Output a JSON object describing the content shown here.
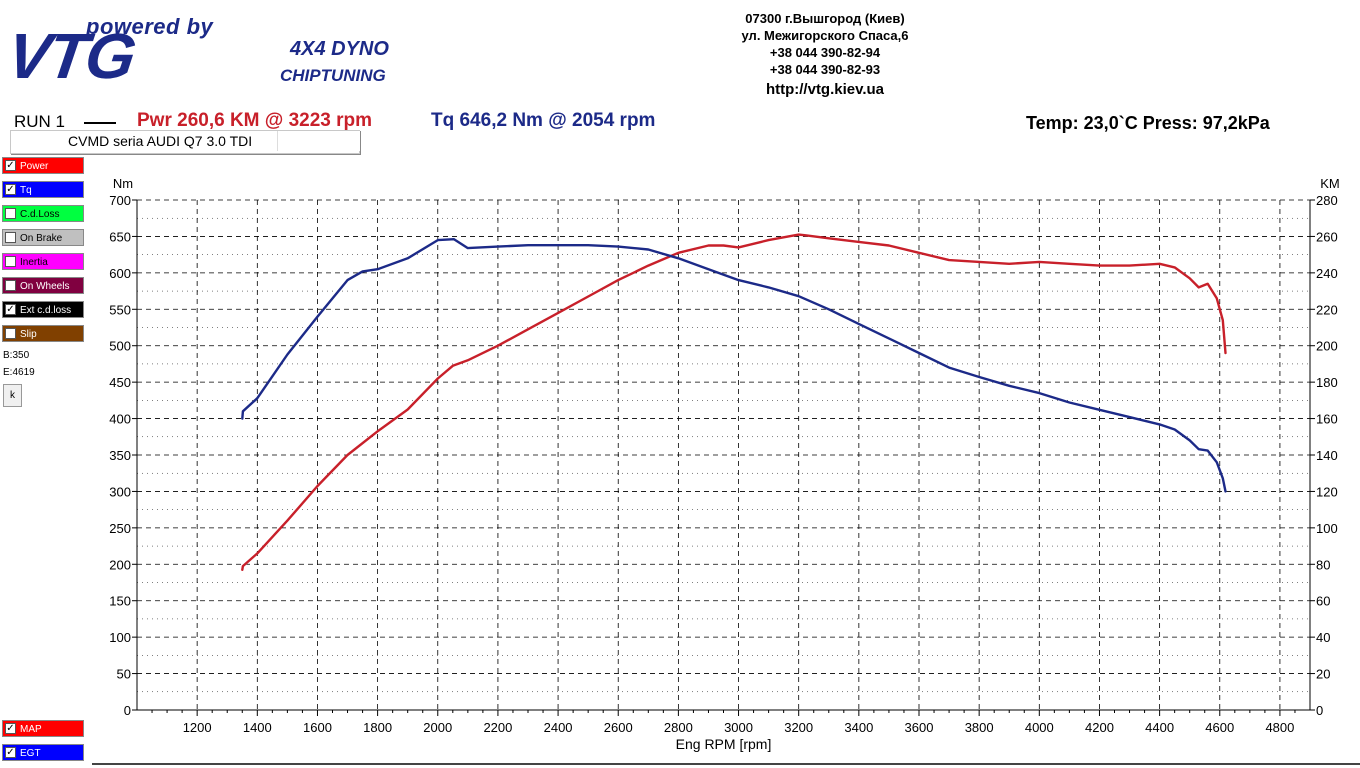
{
  "logo": {
    "powered": "powered by",
    "brand": "VTG",
    "line1": "4X4 DYNO",
    "line2": "CHIPTUNING"
  },
  "address": {
    "line1": "07300 г.Вышгород (Киев)",
    "line2": "ул. Межигорского Спаса,6",
    "phone1": "+38 044 390-82-94",
    "phone2": "+38 044 390-82-93",
    "url": "http://vtg.kiev.ua"
  },
  "header": {
    "run": "RUN 1",
    "power": "Pwr  260,6 KM @ 3223 rpm",
    "torque": "Tq 646,2 Nm @ 2054 rpm",
    "conditions": "Temp: 23,0`C   Press: 97,2kPa",
    "vehicle": "CVMD  seria AUDI Q7 3.0 TDI"
  },
  "legend": {
    "items": [
      {
        "label": "Power",
        "checked": true,
        "color": "#ff0000"
      },
      {
        "label": "Tq",
        "checked": true,
        "color": "#0000ff"
      },
      {
        "label": "C.d.Loss",
        "checked": false,
        "color": "#00ff40"
      },
      {
        "label": "On Brake",
        "checked": false,
        "color": "#c0c0c0"
      },
      {
        "label": "Inertia",
        "checked": false,
        "color": "#ff00ff"
      },
      {
        "label": "On Wheels",
        "checked": false,
        "color": "#800040"
      },
      {
        "label": "Ext c.d.loss",
        "checked": true,
        "color": "#000000"
      },
      {
        "label": "Slip",
        "checked": false,
        "color": "#804000"
      }
    ],
    "begin": "B:350",
    "end": "E:4619",
    "k_button": "k",
    "bottom_items": [
      {
        "label": "MAP",
        "checked": true,
        "color": "#ff0000"
      },
      {
        "label": "EGT",
        "checked": true,
        "color": "#0000ff"
      }
    ]
  },
  "chart_data": {
    "type": "line",
    "xlabel": "Eng RPM [rpm]",
    "ylabel_left": "Nm",
    "ylabel_right": "KM",
    "xlim": [
      1000,
      4900
    ],
    "ylim_left": [
      0,
      700
    ],
    "ylim_right": [
      0,
      280
    ],
    "x_ticks": [
      1200,
      1400,
      1600,
      1800,
      2000,
      2200,
      2400,
      2600,
      2800,
      3000,
      3200,
      3400,
      3600,
      3800,
      4000,
      4200,
      4400,
      4600,
      4800
    ],
    "y_ticks_left": [
      0,
      50,
      100,
      150,
      200,
      250,
      300,
      350,
      400,
      450,
      500,
      550,
      600,
      650,
      700
    ],
    "y_ticks_right": [
      0,
      20,
      40,
      60,
      80,
      100,
      120,
      140,
      160,
      180,
      200,
      220,
      240,
      260,
      280
    ],
    "grid": true,
    "series": [
      {
        "name": "Power",
        "axis": "right",
        "color": "#c8202a",
        "x": [
          1350,
          1352,
          1400,
          1500,
          1600,
          1700,
          1800,
          1900,
          2000,
          2050,
          2100,
          2200,
          2300,
          2400,
          2500,
          2600,
          2700,
          2800,
          2900,
          2950,
          3000,
          3100,
          3200,
          3223,
          3300,
          3400,
          3500,
          3600,
          3700,
          3800,
          3900,
          4000,
          4100,
          4200,
          4300,
          4400,
          4450,
          4500,
          4530,
          4560,
          4590,
          4610,
          4619
        ],
        "y": [
          77,
          79,
          86,
          104,
          123,
          140,
          153,
          165,
          182,
          189,
          192,
          200,
          209,
          218,
          227,
          236,
          244,
          251,
          255,
          255,
          254,
          258,
          261,
          260.6,
          259,
          257,
          255,
          251,
          247,
          246,
          245,
          246,
          245,
          244,
          244,
          245,
          243,
          237,
          232,
          234,
          226,
          214,
          196
        ]
      },
      {
        "name": "Tq",
        "axis": "left",
        "color": "#1c2a88",
        "x": [
          1350,
          1352,
          1400,
          1500,
          1600,
          1700,
          1750,
          1800,
          1900,
          2000,
          2054,
          2100,
          2200,
          2300,
          2400,
          2500,
          2600,
          2700,
          2800,
          2900,
          3000,
          3100,
          3200,
          3300,
          3400,
          3500,
          3600,
          3700,
          3800,
          3900,
          4000,
          4100,
          4200,
          4300,
          4400,
          4450,
          4500,
          4530,
          4560,
          4590,
          4610,
          4619
        ],
        "y": [
          400,
          410,
          428,
          488,
          540,
          590,
          602,
          605,
          620,
          645,
          646.2,
          634,
          636,
          638,
          638,
          638,
          636,
          632,
          620,
          605,
          590,
          580,
          568,
          550,
          530,
          510,
          490,
          470,
          457,
          445,
          435,
          422,
          412,
          402,
          392,
          385,
          370,
          358,
          356,
          340,
          318,
          300
        ]
      }
    ]
  }
}
